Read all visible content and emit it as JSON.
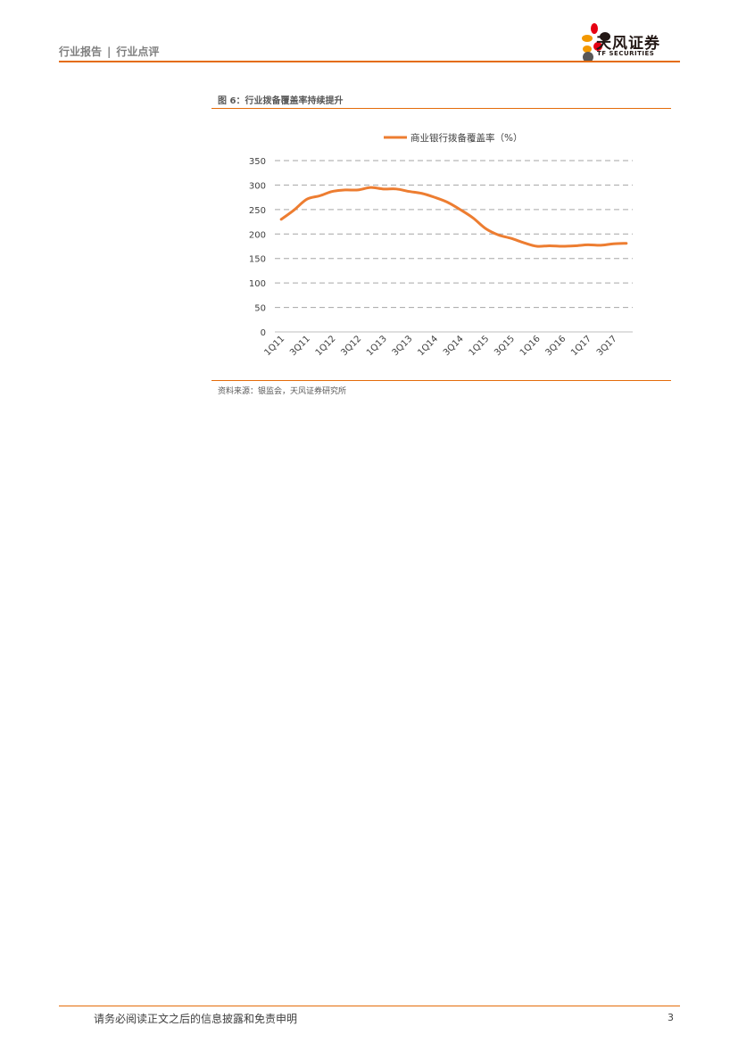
{
  "header": {
    "category": "行业报告",
    "separator": "|",
    "subcategory": "行业点评"
  },
  "logo": {
    "name": "天风证券",
    "english": "TF SECURITIES",
    "colors": [
      "#e60012",
      "#f39800",
      "#231815",
      "#e60012",
      "#f39800",
      "#595757"
    ]
  },
  "figure": {
    "title": "图 6：行业拨备覆盖率持续提升",
    "source": "资料来源：银监会，天风证券研究所"
  },
  "chart_data": {
    "type": "line",
    "title": "",
    "xlabel": "",
    "ylabel": "",
    "ylim": [
      0,
      350
    ],
    "yticks": [
      0,
      50,
      100,
      150,
      200,
      250,
      300,
      350
    ],
    "grid": "horizontal-dashed",
    "legend_position": "top-center",
    "categories": [
      "1Q11",
      "2Q11",
      "3Q11",
      "4Q11",
      "1Q12",
      "2Q12",
      "3Q12",
      "4Q12",
      "1Q13",
      "2Q13",
      "3Q13",
      "4Q13",
      "1Q14",
      "2Q14",
      "3Q14",
      "4Q14",
      "1Q15",
      "2Q15",
      "3Q15",
      "4Q15",
      "1Q16",
      "2Q16",
      "3Q16",
      "4Q16",
      "1Q17",
      "2Q17",
      "3Q17",
      "4Q17"
    ],
    "tick_labels": [
      "1Q11",
      "3Q11",
      "1Q12",
      "3Q12",
      "1Q13",
      "3Q13",
      "1Q14",
      "3Q14",
      "1Q15",
      "3Q15",
      "1Q16",
      "3Q16",
      "1Q17",
      "3Q17"
    ],
    "series": [
      {
        "name": "商业银行拨备覆盖率（%）",
        "color": "#ed7d31",
        "values": [
          230,
          249,
          271,
          278,
          287,
          290,
          290,
          295,
          292,
          292,
          287,
          283,
          275,
          265,
          250,
          233,
          211,
          198,
          191,
          182,
          175,
          176,
          175,
          176,
          178,
          177,
          180,
          181
        ]
      }
    ]
  },
  "footer": {
    "disclaimer": "请务必阅读正文之后的信息披露和免责申明",
    "page": "3"
  }
}
